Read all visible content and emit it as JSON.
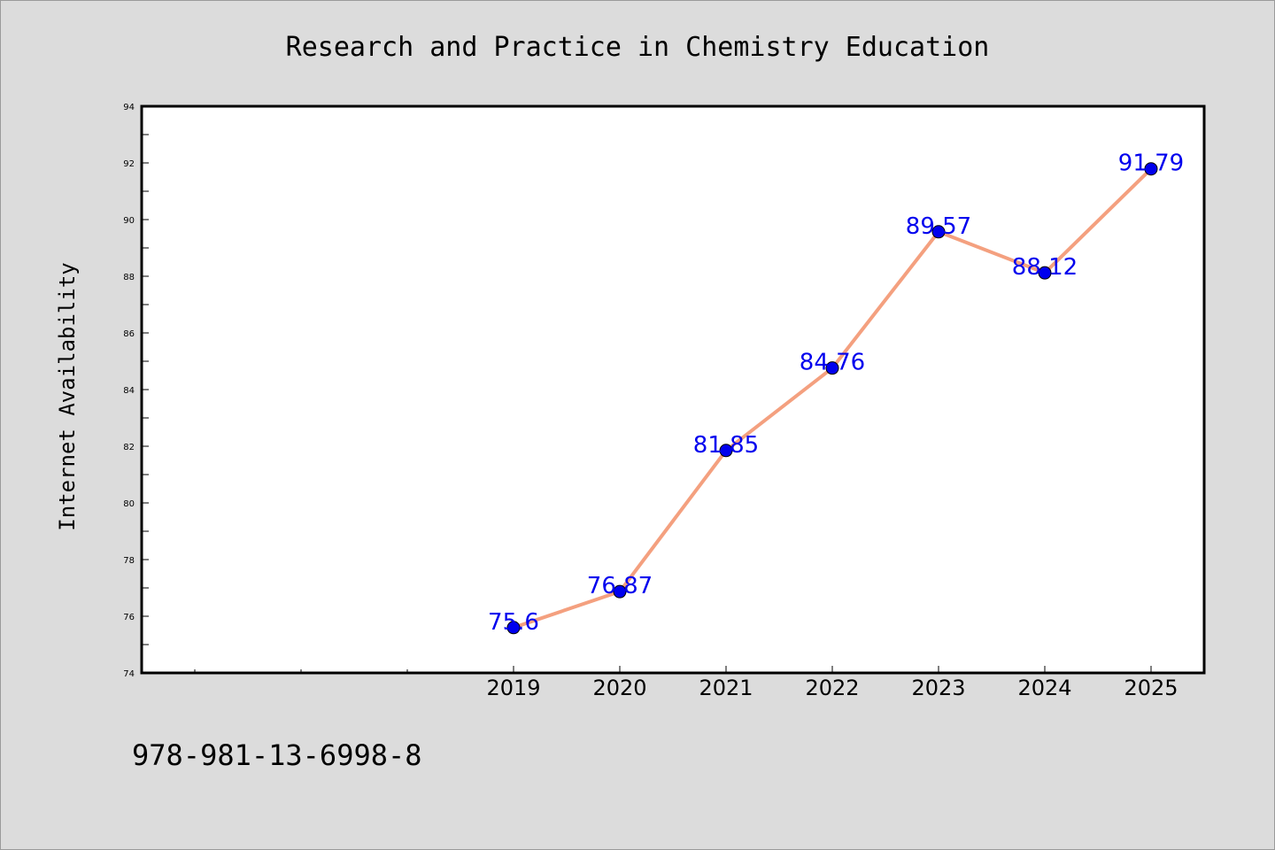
{
  "chart_data": {
    "type": "line",
    "title": "Research and Practice in Chemistry Education",
    "xlabel": "",
    "ylabel": "Internet Availability",
    "categories": [
      "2019",
      "2020",
      "2021",
      "2022",
      "2023",
      "2024",
      "2025"
    ],
    "series": [
      {
        "values": [
          75.6,
          76.87,
          81.85,
          84.76,
          89.57,
          88.12,
          91.79
        ],
        "data_labels": [
          "75.6",
          "76.87",
          "81.85",
          "84.76",
          "89.57",
          "88.12",
          "91.79"
        ],
        "line_color": "#f4a07f",
        "marker_color": "#0000ee"
      }
    ],
    "ylim": [
      74,
      94
    ],
    "yticks": [
      "74",
      "76",
      "78",
      "80",
      "82",
      "84",
      "86",
      "88",
      "90",
      "92",
      "94"
    ],
    "grid": false,
    "legend": "none"
  },
  "footer": {
    "isbn": "978-981-13-6998-8"
  },
  "colors": {
    "background": "#dcdcdc",
    "plot_area": "#ffffff",
    "data_label": "#0000ee"
  }
}
